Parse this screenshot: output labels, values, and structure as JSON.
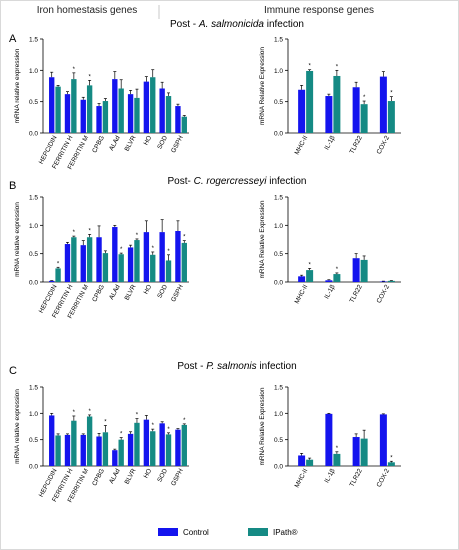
{
  "header": {
    "left": "Iron homestasis genes",
    "right": "Immune response genes"
  },
  "colors": {
    "control": "#1414ee",
    "ipath": "#158a84",
    "axis": "#000000",
    "error": "#000000"
  },
  "legend": {
    "control": "Control",
    "ipath": "IPath®"
  },
  "panels": [
    {
      "letter": "A",
      "title_prefix": "Post - ",
      "title_species": "A. salmonicida",
      "title_suffix": " infection",
      "title_x": 236
    },
    {
      "letter": "B",
      "title_prefix": "Post- ",
      "title_species": "C. rogercresseyi",
      "title_suffix": " infection",
      "title_x": 236
    },
    {
      "letter": "C",
      "title_prefix": "Post - ",
      "title_species": "P. salmonis",
      "title_suffix": " infection",
      "title_x": 236
    }
  ],
  "chart_data": [
    {
      "type": "bar",
      "panel": "A-iron",
      "ylabel": "mRNA relative expression",
      "ylim": [
        0,
        1.5
      ],
      "yticks": [
        "0.0",
        "0.5",
        "1.0",
        "1.5"
      ],
      "categories": [
        "HEPCIDIN",
        "FERRITIN H",
        "FERRITIN M",
        "CPBG",
        "ALAd",
        "BLVR",
        "HO",
        "SOD",
        "GSPH"
      ],
      "series": [
        {
          "name": "Control",
          "values": [
            0.89,
            0.62,
            0.53,
            0.43,
            0.86,
            0.62,
            0.82,
            0.71,
            0.43
          ],
          "errors": [
            0.08,
            0.04,
            0.04,
            0.04,
            0.12,
            0.06,
            0.08,
            0.1,
            0.03
          ]
        },
        {
          "name": "IPath®",
          "values": [
            0.74,
            0.86,
            0.76,
            0.51,
            0.71,
            0.56,
            0.89,
            0.59,
            0.26
          ],
          "errors": [
            0.02,
            0.1,
            0.08,
            0.04,
            0.14,
            0.14,
            0.12,
            0.05,
            0.02
          ]
        }
      ],
      "significant": [
        false,
        true,
        true,
        false,
        false,
        false,
        false,
        false,
        false
      ]
    },
    {
      "type": "bar",
      "panel": "A-immune",
      "ylabel": "mRNA Relative Expression",
      "ylim": [
        0,
        1.5
      ],
      "yticks": [
        "0.0",
        "0.5",
        "1.0",
        "1.5"
      ],
      "categories": [
        "MHC-II",
        "IL-1β",
        "TLR22",
        "COX-2"
      ],
      "series": [
        {
          "name": "Control",
          "values": [
            0.69,
            0.59,
            0.73,
            0.9
          ],
          "errors": [
            0.07,
            0.03,
            0.08,
            0.08
          ]
        },
        {
          "name": "IPath®",
          "values": [
            0.99,
            0.91,
            0.46,
            0.51
          ],
          "errors": [
            0.02,
            0.09,
            0.05,
            0.07
          ]
        }
      ],
      "significant": [
        true,
        true,
        true,
        true
      ]
    },
    {
      "type": "bar",
      "panel": "B-iron",
      "ylabel": "mRNA relative expression",
      "ylim": [
        0,
        1.5
      ],
      "yticks": [
        "0.0",
        "0.5",
        "1.0",
        "1.5"
      ],
      "categories": [
        "HEPCIDIN",
        "FERRITIN H",
        "FERRITIN M",
        "CPBG",
        "ALAd",
        "BLVR",
        "HO",
        "SOD",
        "GSPH"
      ],
      "series": [
        {
          "name": "Control",
          "values": [
            0.02,
            0.67,
            0.65,
            0.79,
            0.97,
            0.61,
            0.88,
            0.88,
            0.9
          ],
          "errors": [
            0.005,
            0.03,
            0.08,
            0.2,
            0.03,
            0.04,
            0.2,
            0.22,
            0.18
          ]
        },
        {
          "name": "IPath®",
          "values": [
            0.24,
            0.79,
            0.79,
            0.51,
            0.49,
            0.74,
            0.48,
            0.38,
            0.69
          ],
          "errors": [
            0.02,
            0.02,
            0.05,
            0.04,
            0.02,
            0.02,
            0.05,
            0.1,
            0.04
          ]
        }
      ],
      "significant": [
        true,
        true,
        true,
        false,
        true,
        true,
        true,
        true,
        true
      ]
    },
    {
      "type": "bar",
      "panel": "B-immune",
      "ylabel": "mRNA Relative Expression",
      "ylim": [
        0,
        1.5
      ],
      "yticks": [
        "0.0",
        "0.5",
        "1.0",
        "1.5"
      ],
      "categories": [
        "MHC-II",
        "IL-1β",
        "TLR22",
        "COX-2"
      ],
      "series": [
        {
          "name": "Control",
          "values": [
            0.1,
            0.03,
            0.42,
            0.01
          ],
          "errors": [
            0.02,
            0.01,
            0.08,
            0.005
          ]
        },
        {
          "name": "IPath®",
          "values": [
            0.21,
            0.14,
            0.39,
            0.02
          ],
          "errors": [
            0.03,
            0.02,
            0.07,
            0.005
          ]
        }
      ],
      "significant": [
        true,
        true,
        false,
        false
      ]
    },
    {
      "type": "bar",
      "panel": "C-iron",
      "ylabel": "mRNA relative expression",
      "ylim": [
        0,
        1.5
      ],
      "yticks": [
        "0.0",
        "0.5",
        "1.0",
        "1.5"
      ],
      "categories": [
        "HEPCIDIN",
        "FERRITIN H",
        "FERRITIN M",
        "CPBG",
        "ALAd",
        "BLVR",
        "HO",
        "SOD",
        "GSPH"
      ],
      "series": [
        {
          "name": "Control",
          "values": [
            0.96,
            0.59,
            0.59,
            0.56,
            0.3,
            0.61,
            0.88,
            0.81,
            0.69
          ],
          "errors": [
            0.04,
            0.02,
            0.02,
            0.06,
            0.02,
            0.04,
            0.08,
            0.03,
            0.02
          ]
        },
        {
          "name": "IPath®",
          "values": [
            0.58,
            0.86,
            0.94,
            0.64,
            0.5,
            0.82,
            0.66,
            0.6,
            0.78
          ],
          "errors": [
            0.03,
            0.09,
            0.03,
            0.13,
            0.04,
            0.08,
            0.04,
            0.03,
            0.02
          ]
        }
      ],
      "significant": [
        false,
        true,
        true,
        true,
        true,
        true,
        true,
        true,
        true
      ]
    },
    {
      "type": "bar",
      "panel": "C-immune",
      "ylabel": "mRNA Relative Expression",
      "ylim": [
        0,
        1.5
      ],
      "yticks": [
        "0.0",
        "0.5",
        "1.0",
        "1.5"
      ],
      "categories": [
        "MHC-II",
        "IL-1β",
        "TLR22",
        "COX-2"
      ],
      "series": [
        {
          "name": "Control",
          "values": [
            0.2,
            0.99,
            0.55,
            0.98
          ],
          "errors": [
            0.04,
            0.01,
            0.06,
            0.01
          ]
        },
        {
          "name": "IPath®",
          "values": [
            0.12,
            0.23,
            0.52,
            0.07
          ],
          "errors": [
            0.03,
            0.04,
            0.16,
            0.02
          ]
        }
      ],
      "significant": [
        false,
        true,
        false,
        true
      ]
    }
  ]
}
